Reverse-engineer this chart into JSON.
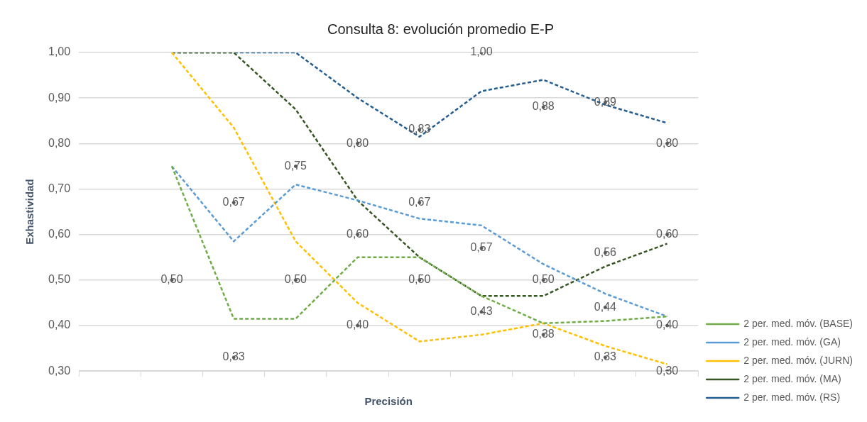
{
  "chart_data": {
    "type": "line",
    "title": "Consulta 8: evolución promedio E-P",
    "xlabel": "Precisión",
    "ylabel": "Exhastividad",
    "categories": [
      null,
      null,
      null,
      null,
      null,
      null,
      null,
      null,
      null,
      null
    ],
    "ylim": [
      0.3,
      1.0
    ],
    "yticks": [
      {
        "value": 0.3,
        "label": "0,30"
      },
      {
        "value": 0.4,
        "label": "0,40"
      },
      {
        "value": 0.5,
        "label": "0,50"
      },
      {
        "value": 0.6,
        "label": "0,60"
      },
      {
        "value": 0.7,
        "label": "0,70"
      },
      {
        "value": 0.8,
        "label": "0,80"
      },
      {
        "value": 0.9,
        "label": "0,90"
      },
      {
        "value": 1.0,
        "label": "1,00"
      }
    ],
    "grid": "y",
    "legend": "right",
    "line_style": "dashed",
    "marker": "none",
    "series": [
      {
        "name": "2 per. med. móv. (BASE)",
        "color": "#70ad47",
        "values": [
          null,
          0.75,
          0.415,
          0.415,
          0.55,
          0.55,
          0.465,
          0.405,
          0.41,
          0.42
        ]
      },
      {
        "name": "2 per. med. móv. (GA)",
        "color": "#5b9bd5",
        "values": [
          null,
          0.75,
          0.585,
          0.71,
          0.675,
          0.635,
          0.62,
          0.535,
          0.47,
          0.42
        ]
      },
      {
        "name": "2 per. med. móv. (JURN)",
        "color": "#ffc000",
        "values": [
          null,
          1.0,
          0.835,
          0.585,
          0.45,
          0.365,
          0.38,
          0.405,
          0.355,
          0.315
        ]
      },
      {
        "name": "2 per. med. móv. (MA)",
        "color": "#375623",
        "values": [
          null,
          1.0,
          1.0,
          0.875,
          0.675,
          0.55,
          0.465,
          0.465,
          0.53,
          0.58
        ]
      },
      {
        "name": "2 per. med. móv. (RS)",
        "color": "#255e91",
        "values": [
          null,
          1.0,
          1.0,
          1.0,
          0.9,
          0.815,
          0.915,
          0.94,
          0.885,
          0.845
        ]
      },
      {
        "type": "scatter",
        "marker": "circle",
        "color": "#595959",
        "values": [
          null,
          null,
          null,
          null,
          0.8,
          0.83,
          1.0,
          0.88,
          0.89,
          0.8
        ],
        "value_labels": [
          null,
          null,
          null,
          null,
          "0,80",
          "0,83",
          "1,00",
          "0,88",
          "0,89",
          "0,80"
        ]
      },
      {
        "type": "scatter",
        "marker": "circle",
        "color": "#595959",
        "values": [
          null,
          0.5,
          0.67,
          0.75,
          0.6,
          0.67,
          0.57,
          0.5,
          0.44,
          0.4
        ],
        "value_labels": [
          null,
          "0,50",
          "0,67",
          "0,75",
          "0,60",
          "0,67",
          "0,57",
          "0,50",
          "0,44",
          "0,40"
        ]
      },
      {
        "type": "scatter",
        "marker": "circle",
        "color": "#595959",
        "values": [
          null,
          null,
          0.33,
          0.5,
          null,
          0.5,
          0.43,
          0.38,
          null,
          null
        ],
        "value_labels": [
          null,
          null,
          "0,33",
          "0,50",
          null,
          "0,50",
          "0,43",
          "0,38",
          null,
          null
        ]
      },
      {
        "type": "scatter",
        "marker": "circle",
        "color": "#595959",
        "values": [
          null,
          null,
          null,
          null,
          0.4,
          null,
          null,
          null,
          0.33,
          0.3
        ],
        "value_labels": [
          null,
          null,
          null,
          null,
          "0,40",
          null,
          null,
          null,
          "0,33",
          "0,30"
        ]
      },
      {
        "type": "scatter",
        "marker": "circle",
        "color": "#595959",
        "values": [
          null,
          null,
          null,
          null,
          null,
          null,
          null,
          null,
          0.56,
          0.6
        ],
        "value_labels": [
          null,
          null,
          null,
          null,
          null,
          null,
          null,
          null,
          "0,56",
          "0,60"
        ]
      }
    ]
  }
}
